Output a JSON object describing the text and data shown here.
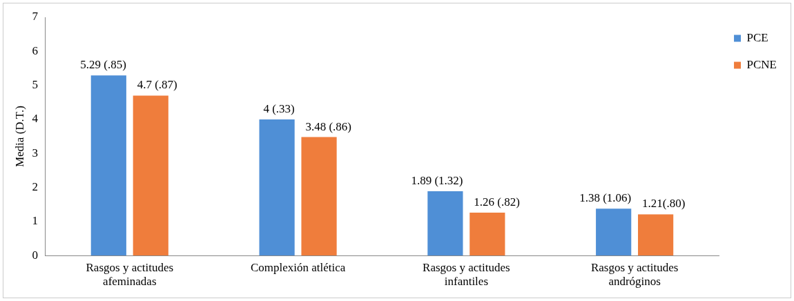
{
  "chart_data": {
    "type": "bar",
    "ylabel": "Media (D.T.)",
    "categories": [
      "Rasgos y actitudes afeminadas",
      "Complexión atlética",
      "Rasgos y actitudes infantiles",
      "Rasgos y actitudes andróginos"
    ],
    "series": [
      {
        "name": "PCE",
        "color": "#4f8fd6",
        "values": [
          5.29,
          4,
          1.89,
          1.38
        ],
        "value_labels": [
          "5.29 (.85)",
          "4 (.33)",
          "1.89 (1.32)",
          "1.38 (1.06)"
        ]
      },
      {
        "name": "PCNE",
        "color": "#ef7d3c",
        "values": [
          4.7,
          3.48,
          1.26,
          1.21
        ],
        "value_labels": [
          "4.7 (.87)",
          "3.48 (.86)",
          "1.26 (.82)",
          "1.21(.80)"
        ]
      }
    ],
    "ylim": [
      0,
      7
    ],
    "yticks": [
      0,
      1,
      2,
      3,
      4,
      5,
      6,
      7
    ],
    "grid": false,
    "legend": "top right"
  }
}
